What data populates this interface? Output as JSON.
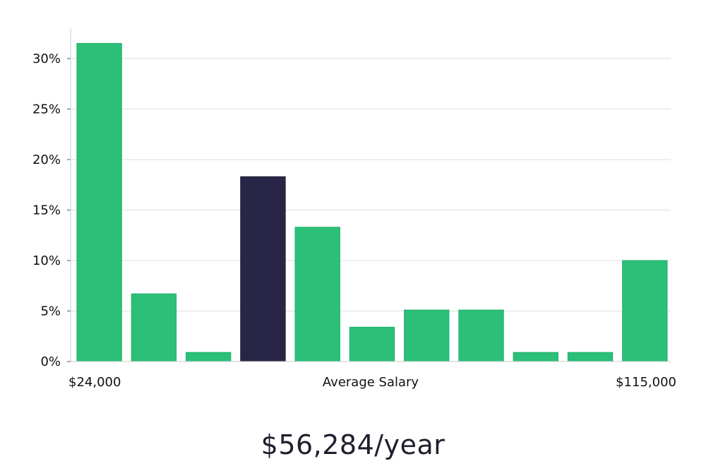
{
  "chart_data": {
    "type": "bar",
    "categories": [
      "",
      "",
      "",
      "",
      "",
      "",
      "",
      "",
      "",
      "",
      ""
    ],
    "values": [
      31.5,
      6.7,
      0.9,
      18.3,
      13.3,
      3.4,
      5.1,
      5.1,
      0.9,
      0.9,
      10.0
    ],
    "highlight_index": 3,
    "ylim": [
      0,
      33
    ],
    "yticks": [
      0,
      5,
      10,
      15,
      20,
      25,
      30
    ],
    "ytick_labels": [
      "0%",
      "5%",
      "10%",
      "15%",
      "20%",
      "25%",
      "30%"
    ],
    "xlabel_left": "$24,000",
    "xlabel_center": "Average Salary",
    "xlabel_right": "$115,000",
    "grid": true,
    "colors": {
      "bar": "#2bbf78",
      "highlight": "#282546",
      "grid": "#dddddd",
      "axis": "#cccccc"
    }
  },
  "average_salary": "$56,284/year"
}
